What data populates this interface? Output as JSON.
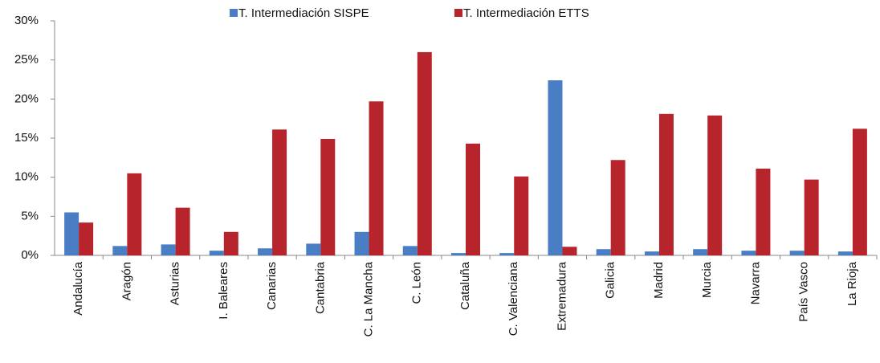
{
  "chart_data": {
    "type": "bar",
    "categories": [
      "Andalucía",
      "Aragón",
      "Asturias",
      "I. Baleares",
      "Canarias",
      "Cantabria",
      "C. La Mancha",
      "C. León",
      "Cataluña",
      "C. Valenciana",
      "Extremadura",
      "Galicia",
      "Madrid",
      "Murcia",
      "Navarra",
      "País Vasco",
      "La Rioja"
    ],
    "series": [
      {
        "name": "T. Intermediación  SISPE",
        "color": "#4a7ec4",
        "values": [
          5.5,
          1.2,
          1.4,
          0.6,
          0.9,
          1.5,
          3.0,
          1.2,
          0.3,
          0.3,
          22.4,
          0.8,
          0.5,
          0.8,
          0.6,
          0.6,
          0.5
        ]
      },
      {
        "name": "T. Intermediación  ETTS",
        "color": "#b8242c",
        "values": [
          4.2,
          10.5,
          6.1,
          3.0,
          16.1,
          14.9,
          19.7,
          26.0,
          14.3,
          10.1,
          1.1,
          12.2,
          18.1,
          17.9,
          11.1,
          9.7,
          16.2
        ]
      }
    ],
    "ylim": [
      0,
      30
    ],
    "yticks": [
      {
        "value": 0,
        "label": "0%"
      },
      {
        "value": 5,
        "label": "5%"
      },
      {
        "value": 10,
        "label": "10%"
      },
      {
        "value": 15,
        "label": "15%"
      },
      {
        "value": 20,
        "label": "20%"
      },
      {
        "value": 25,
        "label": "25%"
      },
      {
        "value": 30,
        "label": "30%"
      }
    ],
    "legend": "top"
  }
}
